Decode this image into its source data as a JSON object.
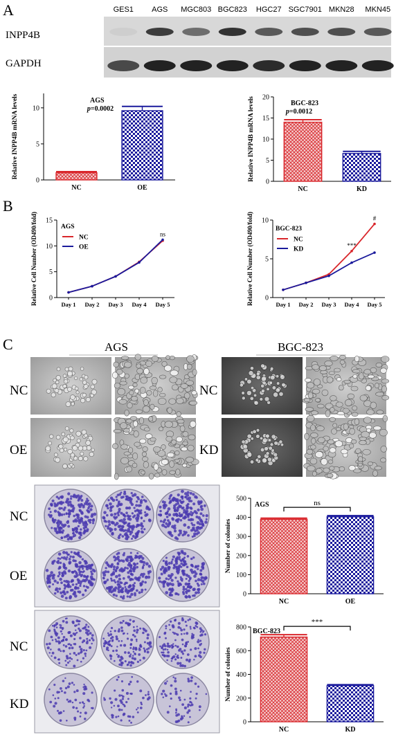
{
  "panels": {
    "a": "A",
    "b": "B",
    "c": "C"
  },
  "western_blot": {
    "lanes": [
      "GES1",
      "AGS",
      "MGC803",
      "BGC823",
      "HGC27",
      "SGC7901",
      "MKN28",
      "MKN45"
    ],
    "rows": [
      "INPP4B",
      "GAPDH"
    ],
    "inpp4b_intensity": [
      0.05,
      0.8,
      0.55,
      0.85,
      0.65,
      0.7,
      0.7,
      0.65
    ],
    "gapdh_intensity": [
      0.7,
      0.9,
      0.9,
      0.9,
      0.85,
      0.9,
      0.9,
      0.9
    ]
  },
  "cell_images": {
    "ags": {
      "title": "AGS",
      "rows": [
        "NC",
        "OE"
      ]
    },
    "bgc": {
      "title": "BGC-823",
      "rows": [
        "NC",
        "KD"
      ]
    }
  },
  "plates": {
    "ags_rows": [
      "NC",
      "OE"
    ],
    "bgc_rows": [
      "NC",
      "KD"
    ]
  },
  "colors": {
    "red": "#d9262b",
    "blue": "#1a1a9c",
    "blot_bg": "#d6d6d6",
    "plate_dish": "#c8c4d8",
    "colony": "#4b3bb0"
  },
  "chart_data": [
    {
      "type": "bar",
      "title": "AGS",
      "annotation": "p=0.0002",
      "ylabel": "Relative INPP4B mRNA levels",
      "categories": [
        "NC",
        "OE"
      ],
      "values": [
        1.0,
        9.6
      ],
      "errors": [
        0.15,
        0.6
      ],
      "ylim": [
        0,
        12
      ],
      "yticks": [
        "0",
        "5",
        "10"
      ],
      "bar_styles": [
        "red",
        "blue"
      ]
    },
    {
      "type": "bar",
      "title": "BGC-823",
      "annotation": "p=0.0012",
      "ylabel": "Relative INPP4B mRNA levels",
      "categories": [
        "NC",
        "KD"
      ],
      "values": [
        14.0,
        6.6
      ],
      "errors": [
        0.6,
        0.5
      ],
      "ylim": [
        0,
        20
      ],
      "yticks": [
        "0",
        "5",
        "10",
        "15",
        "20"
      ],
      "bar_styles": [
        "red",
        "blue"
      ]
    },
    {
      "type": "line",
      "title": "AGS",
      "ylabel": "Relative Cell Number (OD490/fold)",
      "categories": [
        "Day 1",
        "Day 2",
        "Day 3",
        "Day 4",
        "Day 5"
      ],
      "series": [
        {
          "name": "NC",
          "values": [
            1,
            2.2,
            4.1,
            6.9,
            11.0
          ]
        },
        {
          "name": "OE",
          "values": [
            1,
            2.2,
            4.1,
            6.8,
            11.2
          ]
        }
      ],
      "ylim": [
        0,
        15
      ],
      "yticks": [
        "0",
        "5",
        "10",
        "15"
      ],
      "annotations": [
        {
          "x": "Day 5",
          "text": "ns"
        }
      ]
    },
    {
      "type": "line",
      "title": "BGC-823",
      "ylabel": "Relative Cell Number (OD490/fold)",
      "categories": [
        "Day 1",
        "Day 2",
        "Day 3",
        "Day 4",
        "Day 5"
      ],
      "series": [
        {
          "name": "NC",
          "values": [
            1,
            1.9,
            3.0,
            6.0,
            9.5
          ]
        },
        {
          "name": "KD",
          "values": [
            1,
            1.9,
            2.8,
            4.5,
            5.8
          ]
        }
      ],
      "ylim": [
        0,
        10
      ],
      "yticks": [
        "0",
        "5",
        "10"
      ],
      "annotations": [
        {
          "x": "Day 4",
          "text": "***"
        },
        {
          "x": "Day 5",
          "text": "#"
        }
      ]
    },
    {
      "type": "bar",
      "title": "AGS",
      "ylabel": "Number of colonies",
      "categories": [
        "NC",
        "OE"
      ],
      "values": [
        390,
        403
      ],
      "errors": [
        6,
        6
      ],
      "ylim": [
        0,
        500
      ],
      "yticks": [
        "0",
        "100",
        "200",
        "300",
        "400",
        "500"
      ],
      "bar_styles": [
        "red",
        "blue"
      ],
      "significance": "ns"
    },
    {
      "type": "bar",
      "title": "BGC-823",
      "ylabel": "Number of colonies",
      "categories": [
        "NC",
        "KD"
      ],
      "values": [
        715,
        305
      ],
      "errors": [
        20,
        8
      ],
      "ylim": [
        0,
        800
      ],
      "yticks": [
        "0",
        "200",
        "400",
        "600",
        "800"
      ],
      "bar_styles": [
        "red",
        "blue"
      ],
      "significance": "***"
    }
  ]
}
